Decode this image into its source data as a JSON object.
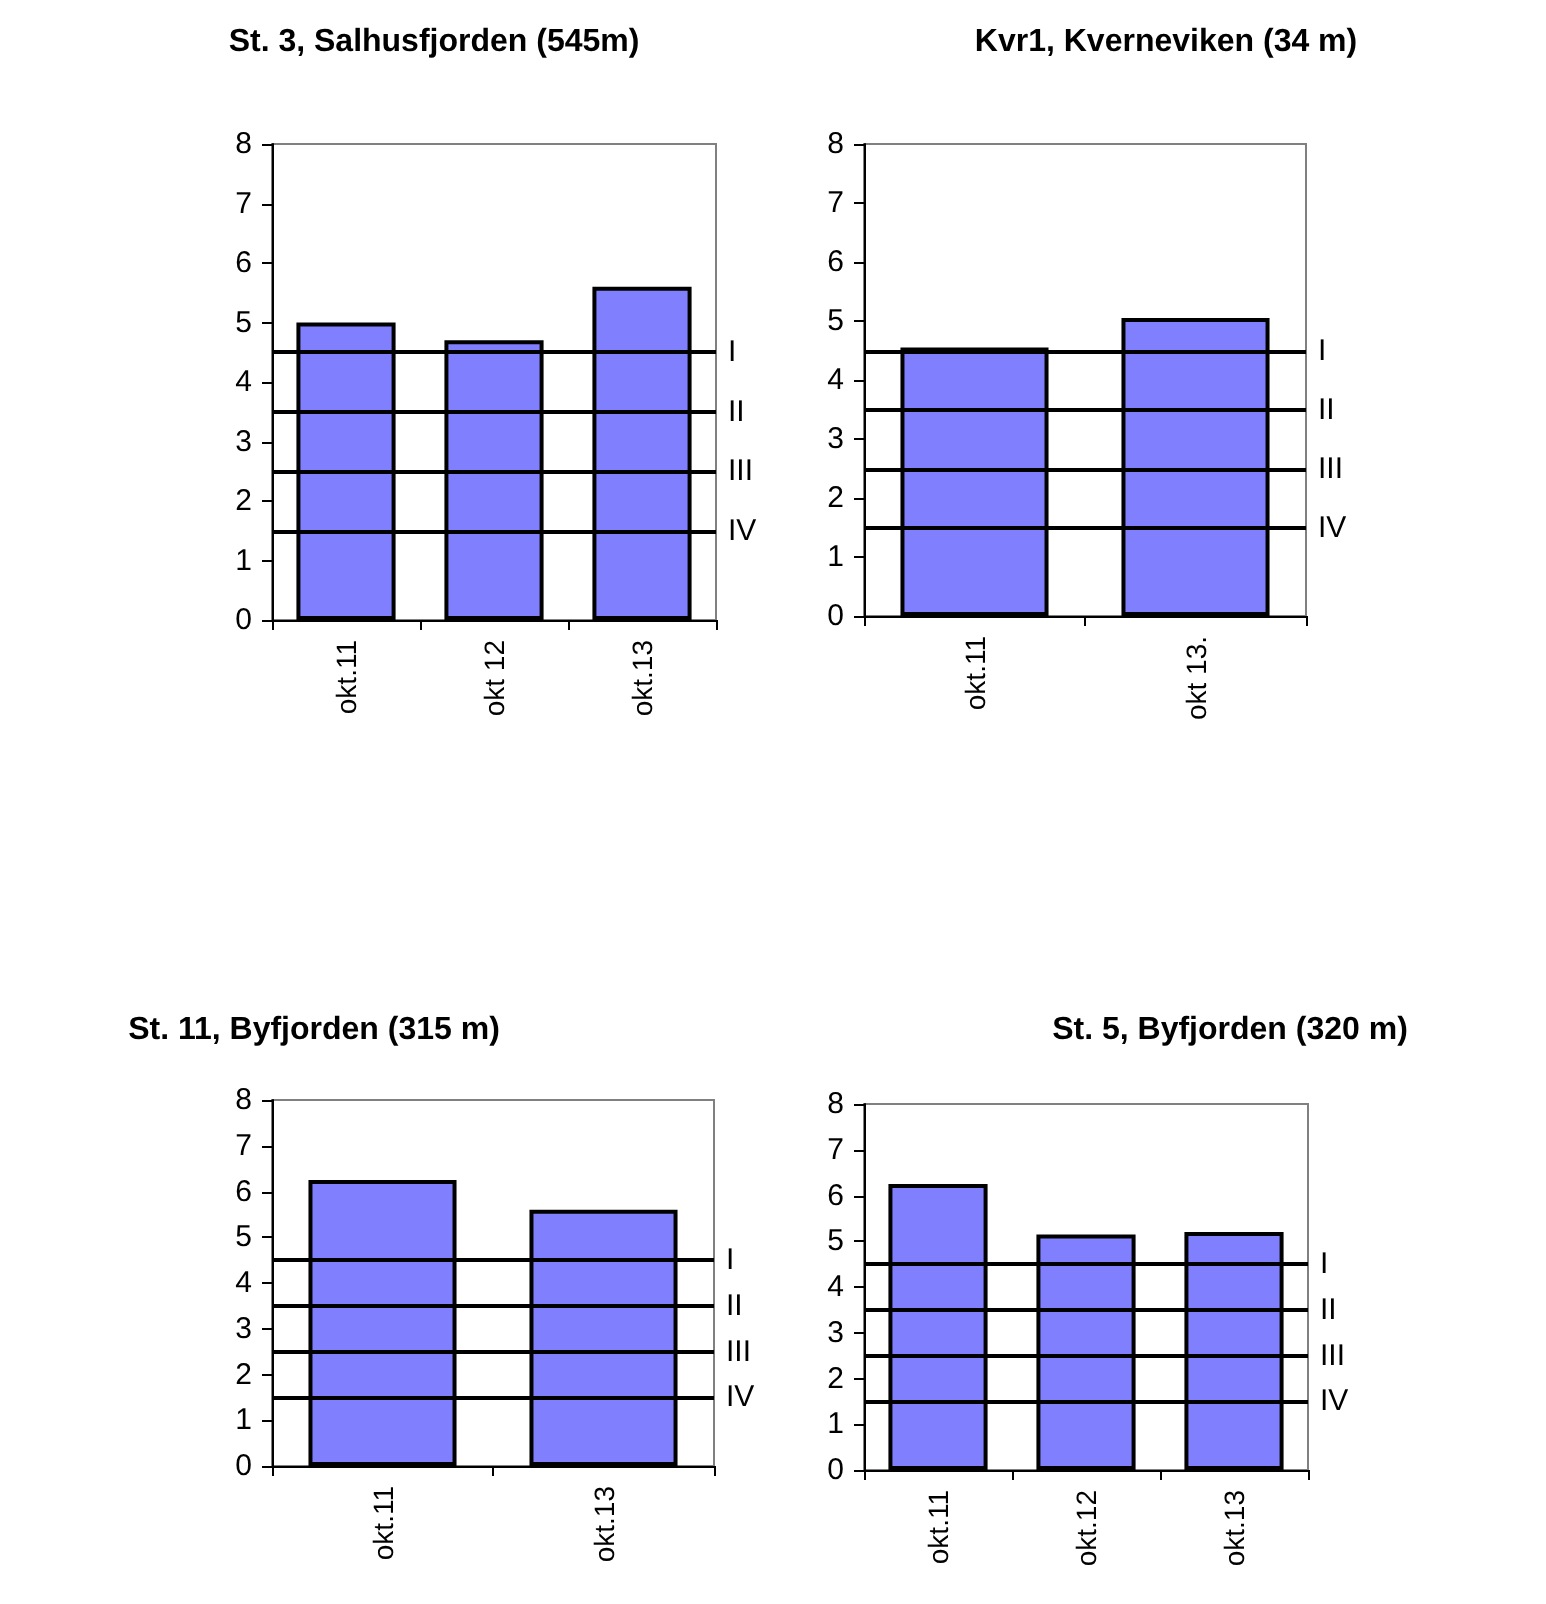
{
  "chart_data": [
    {
      "type": "bar",
      "title": "St. 3, Salhusfjorden (545m)",
      "categories": [
        "okt.11",
        "okt 12",
        "okt.13"
      ],
      "values": [
        5.0,
        4.7,
        5.6
      ],
      "color": "#8080ff",
      "ylim": [
        0,
        8
      ],
      "yticks": [
        0,
        1,
        2,
        3,
        4,
        5,
        6,
        7,
        8
      ],
      "ref_lines": [
        {
          "axis": "y",
          "value": 4.5,
          "label": "I"
        },
        {
          "axis": "y",
          "value": 3.5,
          "label": "II"
        },
        {
          "axis": "y",
          "value": 2.5,
          "label": "III"
        },
        {
          "axis": "y",
          "value": 1.5,
          "label": "IV"
        }
      ]
    },
    {
      "type": "bar",
      "title": "Kvr1, Kverneviken (34 m)",
      "categories": [
        "okt.11",
        "okt 13."
      ],
      "values": [
        4.55,
        5.05
      ],
      "color": "#8080ff",
      "ylim": [
        0,
        8
      ],
      "yticks": [
        0,
        1,
        2,
        3,
        4,
        5,
        6,
        7,
        8
      ],
      "ref_lines": [
        {
          "axis": "y",
          "value": 4.5,
          "label": "I"
        },
        {
          "axis": "y",
          "value": 3.5,
          "label": "II"
        },
        {
          "axis": "y",
          "value": 2.5,
          "label": "III"
        },
        {
          "axis": "y",
          "value": 1.5,
          "label": "IV"
        }
      ]
    },
    {
      "type": "bar",
      "title": "St. 11, Byfjorden (315 m)",
      "categories": [
        "okt.11",
        "okt.13"
      ],
      "values": [
        6.25,
        5.6
      ],
      "color": "#8080ff",
      "ylim": [
        0,
        8
      ],
      "yticks": [
        0,
        1,
        2,
        3,
        4,
        5,
        6,
        7,
        8
      ],
      "ref_lines": [
        {
          "axis": "y",
          "value": 4.5,
          "label": "I"
        },
        {
          "axis": "y",
          "value": 3.5,
          "label": "II"
        },
        {
          "axis": "y",
          "value": 2.5,
          "label": "III"
        },
        {
          "axis": "y",
          "value": 1.5,
          "label": "IV"
        }
      ]
    },
    {
      "type": "bar",
      "title": "St. 5, Byfjorden (320 m)",
      "categories": [
        "okt.11",
        "okt.12",
        "okt.13"
      ],
      "values": [
        6.25,
        5.15,
        5.2
      ],
      "color": "#8080ff",
      "ylim": [
        0,
        8
      ],
      "yticks": [
        0,
        1,
        2,
        3,
        4,
        5,
        6,
        7,
        8
      ],
      "ref_lines": [
        {
          "axis": "y",
          "value": 4.5,
          "label": "I"
        },
        {
          "axis": "y",
          "value": 3.5,
          "label": "II"
        },
        {
          "axis": "y",
          "value": 2.5,
          "label": "III"
        },
        {
          "axis": "y",
          "value": 1.5,
          "label": "IV"
        }
      ]
    }
  ]
}
